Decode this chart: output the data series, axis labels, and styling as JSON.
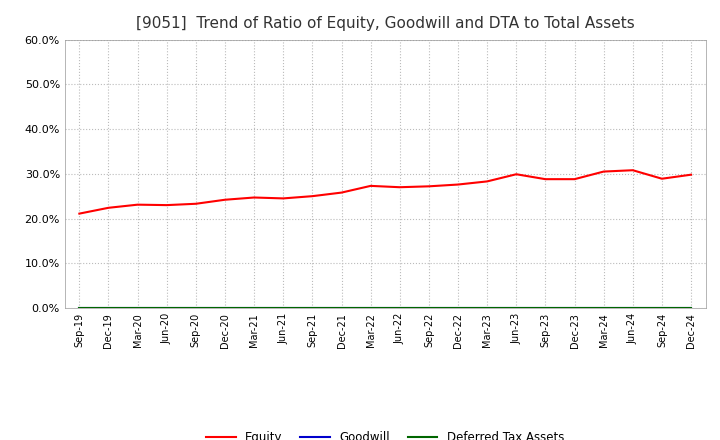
{
  "title": "[9051]  Trend of Ratio of Equity, Goodwill and DTA to Total Assets",
  "x_labels": [
    "Sep-19",
    "Dec-19",
    "Mar-20",
    "Jun-20",
    "Sep-20",
    "Dec-20",
    "Mar-21",
    "Jun-21",
    "Sep-21",
    "Dec-21",
    "Mar-22",
    "Jun-22",
    "Sep-22",
    "Dec-22",
    "Mar-23",
    "Jun-23",
    "Sep-23",
    "Dec-23",
    "Mar-24",
    "Jun-24",
    "Sep-24",
    "Dec-24"
  ],
  "equity": [
    0.211,
    0.224,
    0.231,
    0.23,
    0.233,
    0.242,
    0.247,
    0.245,
    0.25,
    0.258,
    0.273,
    0.27,
    0.272,
    0.276,
    0.283,
    0.299,
    0.288,
    0.288,
    0.305,
    0.308,
    0.289,
    0.298
  ],
  "goodwill": [
    0.0,
    0.0,
    0.0,
    0.0,
    0.0,
    0.0,
    0.0,
    0.0,
    0.0,
    0.0,
    0.0,
    0.0,
    0.0,
    0.0,
    0.0,
    0.0,
    0.0,
    0.0,
    0.0,
    0.0,
    0.0,
    0.0
  ],
  "dta": [
    0.0,
    0.0,
    0.0,
    0.0,
    0.0,
    0.0,
    0.0,
    0.0,
    0.0,
    0.0,
    0.0,
    0.0,
    0.0,
    0.0,
    0.0,
    0.0,
    0.0,
    0.0,
    0.0,
    0.0,
    0.0,
    0.0
  ],
  "equity_color": "#FF0000",
  "goodwill_color": "#0000CC",
  "dta_color": "#006600",
  "ylim": [
    0.0,
    0.6
  ],
  "yticks": [
    0.0,
    0.1,
    0.2,
    0.3,
    0.4,
    0.5,
    0.6
  ],
  "background_color": "#FFFFFF",
  "plot_bg_color": "#FFFFFF",
  "grid_color": "#BBBBBB",
  "title_fontsize": 11,
  "title_color": "#333333",
  "legend_labels": [
    "Equity",
    "Goodwill",
    "Deferred Tax Assets"
  ]
}
